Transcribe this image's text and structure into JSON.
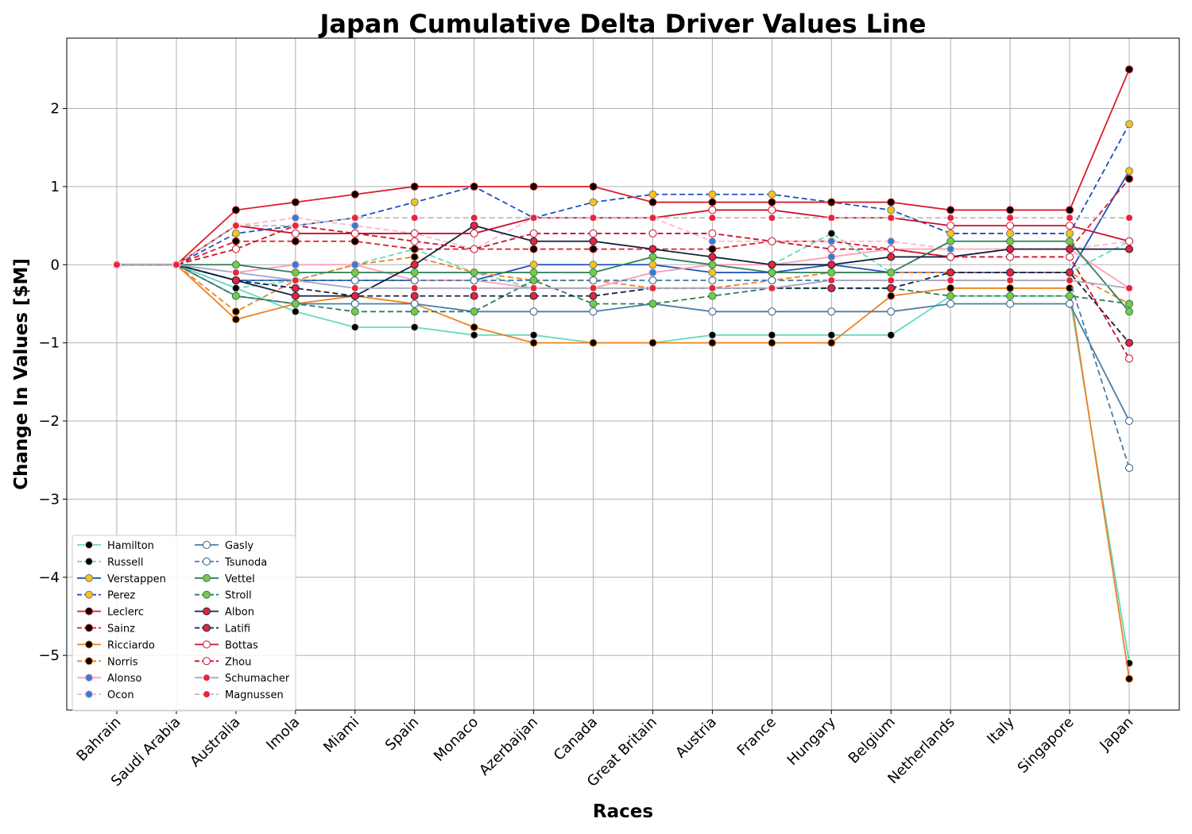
{
  "chart_data": {
    "type": "line",
    "title": "Japan Cumulative Delta Driver Values Line",
    "xlabel": "Races",
    "ylabel": "Change In Values [$M]",
    "categories": [
      "Bahrain",
      "Saudi Arabia",
      "Australia",
      "Imola",
      "Miami",
      "Spain",
      "Monaco",
      "Azerbaijan",
      "Canada",
      "Great Britain",
      "Austria",
      "France",
      "Hungary",
      "Belgium",
      "Netherlands",
      "Italy",
      "Singapore",
      "Japan"
    ],
    "ylim": [
      -5.7,
      2.9
    ],
    "yticks": [
      -5,
      -4,
      -3,
      -2,
      -1,
      0,
      1,
      2
    ],
    "ytick_labels": [
      "−5",
      "−4",
      "−3",
      "−2",
      "−1",
      "0",
      "1",
      "2"
    ],
    "grid": true,
    "legend_position": "lower-left",
    "legend_columns": 2,
    "series": [
      {
        "name": "Hamilton",
        "color": "#66d9c0",
        "dash": false,
        "marker_fill": "#000000",
        "marker_edge": "#cccccc",
        "values": [
          0,
          0,
          -0.3,
          -0.6,
          -0.8,
          -0.8,
          -0.9,
          -0.9,
          -1.0,
          -1.0,
          -0.9,
          -0.9,
          -0.9,
          -0.9,
          -0.4,
          -0.4,
          -0.4,
          -5.1
        ]
      },
      {
        "name": "Russell",
        "color": "#66d9c0",
        "dash": true,
        "marker_fill": "#000000",
        "marker_edge": "#cccccc",
        "values": [
          0,
          0,
          -0.3,
          -0.2,
          0.0,
          0.2,
          -0.1,
          -0.3,
          -0.3,
          -0.1,
          0.0,
          0.0,
          0.4,
          -0.1,
          -0.1,
          -0.1,
          -0.1,
          0.3
        ]
      },
      {
        "name": "Verstappen",
        "color": "#1f4fbf",
        "dash": false,
        "marker_fill": "#f5c518",
        "marker_edge": "#777777",
        "values": [
          0,
          0,
          -0.2,
          -0.2,
          -0.2,
          -0.2,
          -0.2,
          0.0,
          0.0,
          0.0,
          -0.1,
          -0.1,
          0.0,
          -0.1,
          -0.1,
          -0.1,
          -0.1,
          1.2
        ]
      },
      {
        "name": "Perez",
        "color": "#1f4fbf",
        "dash": true,
        "marker_fill": "#f5c518",
        "marker_edge": "#777777",
        "values": [
          0,
          0,
          0.4,
          0.5,
          0.6,
          0.8,
          1.0,
          0.6,
          0.8,
          0.9,
          0.9,
          0.9,
          0.8,
          0.7,
          0.4,
          0.4,
          0.4,
          1.8
        ]
      },
      {
        "name": "Leclerc",
        "color": "#dc1e28",
        "dash": false,
        "marker_fill": "#000000",
        "marker_edge": "#cc2222",
        "values": [
          0,
          0,
          0.7,
          0.8,
          0.9,
          1.0,
          1.0,
          1.0,
          1.0,
          0.8,
          0.8,
          0.8,
          0.8,
          0.8,
          0.7,
          0.7,
          0.7,
          2.5
        ]
      },
      {
        "name": "Sainz",
        "color": "#dc1e28",
        "dash": true,
        "marker_fill": "#000000",
        "marker_edge": "#cc2222",
        "values": [
          0,
          0,
          0.3,
          0.3,
          0.3,
          0.2,
          0.2,
          0.2,
          0.2,
          0.2,
          0.2,
          0.3,
          0.3,
          0.2,
          0.1,
          0.2,
          0.2,
          1.1
        ]
      },
      {
        "name": "Ricciardo",
        "color": "#f08020",
        "dash": false,
        "marker_fill": "#000000",
        "marker_edge": "#f08020",
        "values": [
          0,
          0,
          -0.7,
          -0.5,
          -0.4,
          -0.5,
          -0.8,
          -1.0,
          -1.0,
          -1.0,
          -1.0,
          -1.0,
          -1.0,
          -0.4,
          -0.3,
          -0.3,
          -0.3,
          -5.3
        ]
      },
      {
        "name": "Norris",
        "color": "#f08020",
        "dash": true,
        "marker_fill": "#000000",
        "marker_edge": "#f08020",
        "values": [
          0,
          0,
          -0.6,
          -0.2,
          0.0,
          0.1,
          -0.1,
          -0.2,
          -0.2,
          -0.3,
          -0.3,
          -0.2,
          -0.1,
          -0.1,
          -0.1,
          -0.1,
          -0.1,
          -0.5
        ]
      },
      {
        "name": "Alonso",
        "color": "#ff9ebb",
        "dash": false,
        "marker_fill": "#2f7fd0",
        "marker_edge": "#ff9ebb",
        "values": [
          0,
          0,
          -0.1,
          0.0,
          0.0,
          -0.2,
          -0.2,
          -0.3,
          -0.3,
          -0.1,
          0.0,
          0.0,
          0.1,
          0.2,
          0.2,
          0.2,
          0.2,
          -0.3
        ]
      },
      {
        "name": "Ocon",
        "color": "#ffb6c8",
        "dash": true,
        "marker_fill": "#2f7fd0",
        "marker_edge": "#ffb6c8",
        "values": [
          0,
          0,
          0.5,
          0.6,
          0.5,
          0.4,
          0.2,
          0.6,
          0.6,
          0.6,
          0.3,
          0.3,
          0.3,
          0.3,
          0.2,
          0.2,
          0.2,
          0.3
        ]
      },
      {
        "name": "Gasly",
        "color": "#4a7fa8",
        "dash": false,
        "marker_fill": "#ffffff",
        "marker_edge": "#2f5a80",
        "values": [
          0,
          0,
          -0.4,
          -0.5,
          -0.5,
          -0.5,
          -0.6,
          -0.6,
          -0.6,
          -0.5,
          -0.6,
          -0.6,
          -0.6,
          -0.6,
          -0.5,
          -0.5,
          -0.5,
          -2.0
        ]
      },
      {
        "name": "Tsunoda",
        "color": "#4a7fa8",
        "dash": true,
        "marker_fill": "#ffffff",
        "marker_edge": "#2f5a80",
        "values": [
          0,
          0,
          -0.2,
          -0.2,
          -0.2,
          -0.2,
          -0.2,
          -0.2,
          -0.2,
          -0.2,
          -0.2,
          -0.2,
          -0.2,
          -0.2,
          -0.2,
          -0.2,
          -0.2,
          -2.6
        ]
      },
      {
        "name": "Vettel",
        "color": "#2e7d5b",
        "dash": false,
        "marker_fill": "#7ac943",
        "marker_edge": "#2e7d5b",
        "values": [
          0,
          0,
          0.0,
          -0.1,
          -0.1,
          -0.1,
          -0.1,
          -0.1,
          -0.1,
          0.1,
          0.0,
          -0.1,
          -0.1,
          -0.1,
          0.3,
          0.3,
          0.3,
          -0.6
        ]
      },
      {
        "name": "Stroll",
        "color": "#2e7d5b",
        "dash": true,
        "marker_fill": "#7ac943",
        "marker_edge": "#2e7d5b",
        "values": [
          0,
          0,
          -0.4,
          -0.5,
          -0.6,
          -0.6,
          -0.6,
          -0.2,
          -0.5,
          -0.5,
          -0.4,
          -0.3,
          -0.3,
          -0.3,
          -0.4,
          -0.4,
          -0.4,
          -0.5
        ]
      },
      {
        "name": "Albon",
        "color": "#14213d",
        "dash": false,
        "marker_fill": "#e8243c",
        "marker_edge": "#14213d",
        "values": [
          0,
          0,
          -0.2,
          -0.4,
          -0.4,
          0.0,
          0.5,
          0.3,
          0.3,
          0.2,
          0.1,
          0.0,
          0.0,
          0.1,
          0.1,
          0.2,
          0.2,
          0.2
        ]
      },
      {
        "name": "Latifi",
        "color": "#14213d",
        "dash": true,
        "marker_fill": "#e8243c",
        "marker_edge": "#14213d",
        "values": [
          0,
          0,
          -0.2,
          -0.3,
          -0.4,
          -0.4,
          -0.4,
          -0.4,
          -0.4,
          -0.3,
          -0.3,
          -0.3,
          -0.3,
          -0.3,
          -0.1,
          -0.1,
          -0.1,
          -1.0
        ]
      },
      {
        "name": "Bottas",
        "color": "#c8102e",
        "dash": false,
        "marker_fill": "#ffffff",
        "marker_edge": "#c8102e",
        "values": [
          0,
          0,
          0.5,
          0.4,
          0.4,
          0.4,
          0.4,
          0.6,
          0.6,
          0.6,
          0.7,
          0.7,
          0.6,
          0.6,
          0.5,
          0.5,
          0.5,
          0.3
        ]
      },
      {
        "name": "Zhou",
        "color": "#c8102e",
        "dash": true,
        "marker_fill": "#ffffff",
        "marker_edge": "#c8102e",
        "values": [
          0,
          0,
          0.2,
          0.5,
          0.4,
          0.3,
          0.2,
          0.4,
          0.4,
          0.4,
          0.4,
          0.3,
          0.2,
          0.2,
          0.1,
          0.1,
          0.1,
          -1.2
        ]
      },
      {
        "name": "Schumacher",
        "color": "#a8a8c0",
        "dash": false,
        "marker_fill": "#e8243c",
        "marker_edge": "#ffffff",
        "values": [
          0,
          0,
          -0.1,
          -0.2,
          -0.3,
          -0.3,
          -0.3,
          -0.3,
          -0.3,
          -0.3,
          -0.3,
          -0.3,
          -0.2,
          -0.2,
          -0.2,
          -0.2,
          -0.2,
          -0.3
        ]
      },
      {
        "name": "Magnussen",
        "color": "#bbbbbb",
        "dash": true,
        "marker_fill": "#e8243c",
        "marker_edge": "#ffffff",
        "values": [
          0,
          0,
          0.5,
          0.5,
          0.6,
          0.6,
          0.6,
          0.6,
          0.6,
          0.6,
          0.6,
          0.6,
          0.6,
          0.6,
          0.6,
          0.6,
          0.6,
          0.6
        ]
      }
    ]
  }
}
